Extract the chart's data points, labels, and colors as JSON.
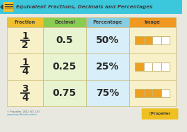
{
  "bg_color": "#e8e8e0",
  "header_bg": "#3cc8dc",
  "title_text": "Equivalent Fractions, Decimals and Percentages",
  "title_color": "#404048",
  "col_headers": [
    "Fraction",
    "Decimal",
    "Percentage",
    "Image"
  ],
  "col_header_colors": [
    "#f0c030",
    "#88cc50",
    "#88cce0",
    "#f09820"
  ],
  "col_header_text_color": "#404040",
  "fractions": [
    [
      "1",
      "2"
    ],
    [
      "1",
      "4"
    ],
    [
      "3",
      "4"
    ]
  ],
  "decimals": [
    "0.5",
    "0.25",
    "0.75"
  ],
  "percentages": [
    "50%",
    "25%",
    "75%"
  ],
  "image_filled": [
    2,
    1,
    3
  ],
  "image_total": [
    4,
    4,
    4
  ],
  "frac_col_color": "#f8f0c8",
  "dec_col_color": "#e8f4d0",
  "pct_col_color": "#d8eef8",
  "img_col_color": "#f8f0c8",
  "orange_color": "#f0a020",
  "white_color": "#ffffff",
  "grid_color": "#c8b870",
  "text_color": "#282828",
  "footer_text": "© Propeller, 2022 (V2, LK)",
  "footer_url": "www.propeller.education",
  "logo_bg": "#f0c020"
}
